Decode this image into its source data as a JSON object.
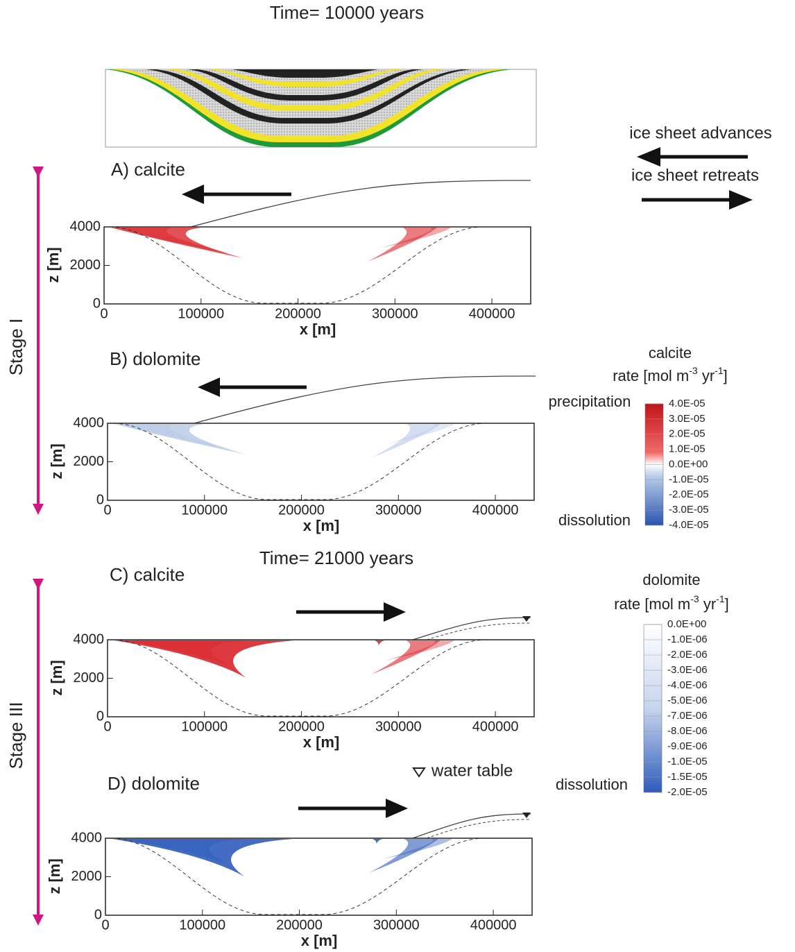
{
  "titles": [
    "Time= 10000 years",
    "Time= 21000 years"
  ],
  "stages": [
    "Stage I",
    "Stage III"
  ],
  "legend": {
    "advances": "ice sheet advances",
    "retreats": "ice sheet retreats",
    "water_table": "water table"
  },
  "axes": {
    "xlabel": "x [m]",
    "ylabel": "z [m]",
    "xlim": [
      0,
      440000
    ],
    "ylim": [
      0,
      4000
    ],
    "xticks": [
      0,
      100000,
      200000,
      300000,
      400000
    ],
    "yticks": [
      0,
      2000,
      4000
    ]
  },
  "panels": [
    {
      "label": "A) calcite"
    },
    {
      "label": "B) dolomite"
    },
    {
      "label": "C) calcite"
    },
    {
      "label": "D) dolomite"
    }
  ],
  "colorbars": [
    {
      "title": "calcite",
      "unit": [
        "rate [mol m",
        "-3",
        " yr",
        "-1",
        "]"
      ],
      "top": "precipitation",
      "bottom": "dissolution",
      "labels": [
        "4.0E-05",
        "3.0E-05",
        "2.0E-05",
        "1.0E-05",
        "0.0E+00",
        "-1.0E-05",
        "-2.0E-05",
        "-3.0E-05",
        "-4.0E-05"
      ]
    },
    {
      "title": "dolomite",
      "unit": [
        "rate [mol m",
        "-3",
        " yr",
        "-1",
        "]"
      ],
      "bottom": "dissolution",
      "labels": [
        "0.0E+00",
        "-1.0E-06",
        "-2.0E-06",
        "-3.0E-06",
        "-4.0E-06",
        "-5.0E-06",
        "-7.0E-06",
        "-8.0E-06",
        "-9.0E-06",
        "-1.0E-05",
        "-1.5E-05",
        "-2.0E-05"
      ]
    }
  ]
}
